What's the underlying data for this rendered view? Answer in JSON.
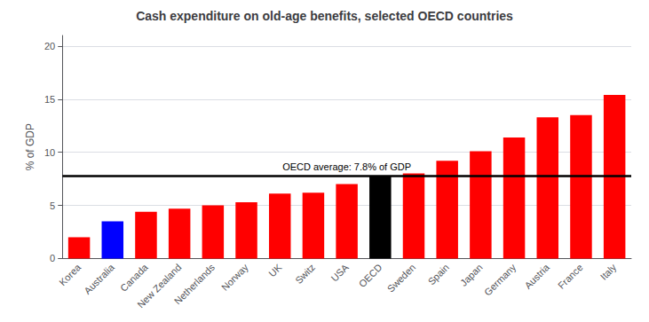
{
  "chart_data": {
    "type": "bar",
    "title": "Cash expenditure on old-age benefits, selected OECD countries",
    "categories": [
      "Korea",
      "Australia",
      "Canada",
      "New Zealand",
      "Netherlands",
      "Norway",
      "UK",
      "Switz",
      "USA",
      "OECD",
      "Sweden",
      "Spain",
      "Japan",
      "Germany",
      "Austria",
      "France",
      "Italy"
    ],
    "values": [
      2.0,
      3.5,
      4.4,
      4.7,
      5.0,
      5.3,
      6.1,
      6.2,
      7.0,
      7.8,
      8.0,
      9.2,
      10.1,
      11.4,
      13.3,
      13.5,
      15.4
    ],
    "colors": [
      "#ff0000",
      "#0000ff",
      "#ff0000",
      "#ff0000",
      "#ff0000",
      "#ff0000",
      "#ff0000",
      "#ff0000",
      "#ff0000",
      "#000000",
      "#ff0000",
      "#ff0000",
      "#ff0000",
      "#ff0000",
      "#ff0000",
      "#ff0000",
      "#ff0000"
    ],
    "ylabel": "% of GDP",
    "ylim": [
      0,
      21
    ],
    "yticks": [
      0,
      5,
      10,
      15,
      20
    ],
    "grid": true,
    "hline": {
      "value": 7.8,
      "label": "OECD average: 7.8% of GDP",
      "color": "#000000"
    }
  }
}
